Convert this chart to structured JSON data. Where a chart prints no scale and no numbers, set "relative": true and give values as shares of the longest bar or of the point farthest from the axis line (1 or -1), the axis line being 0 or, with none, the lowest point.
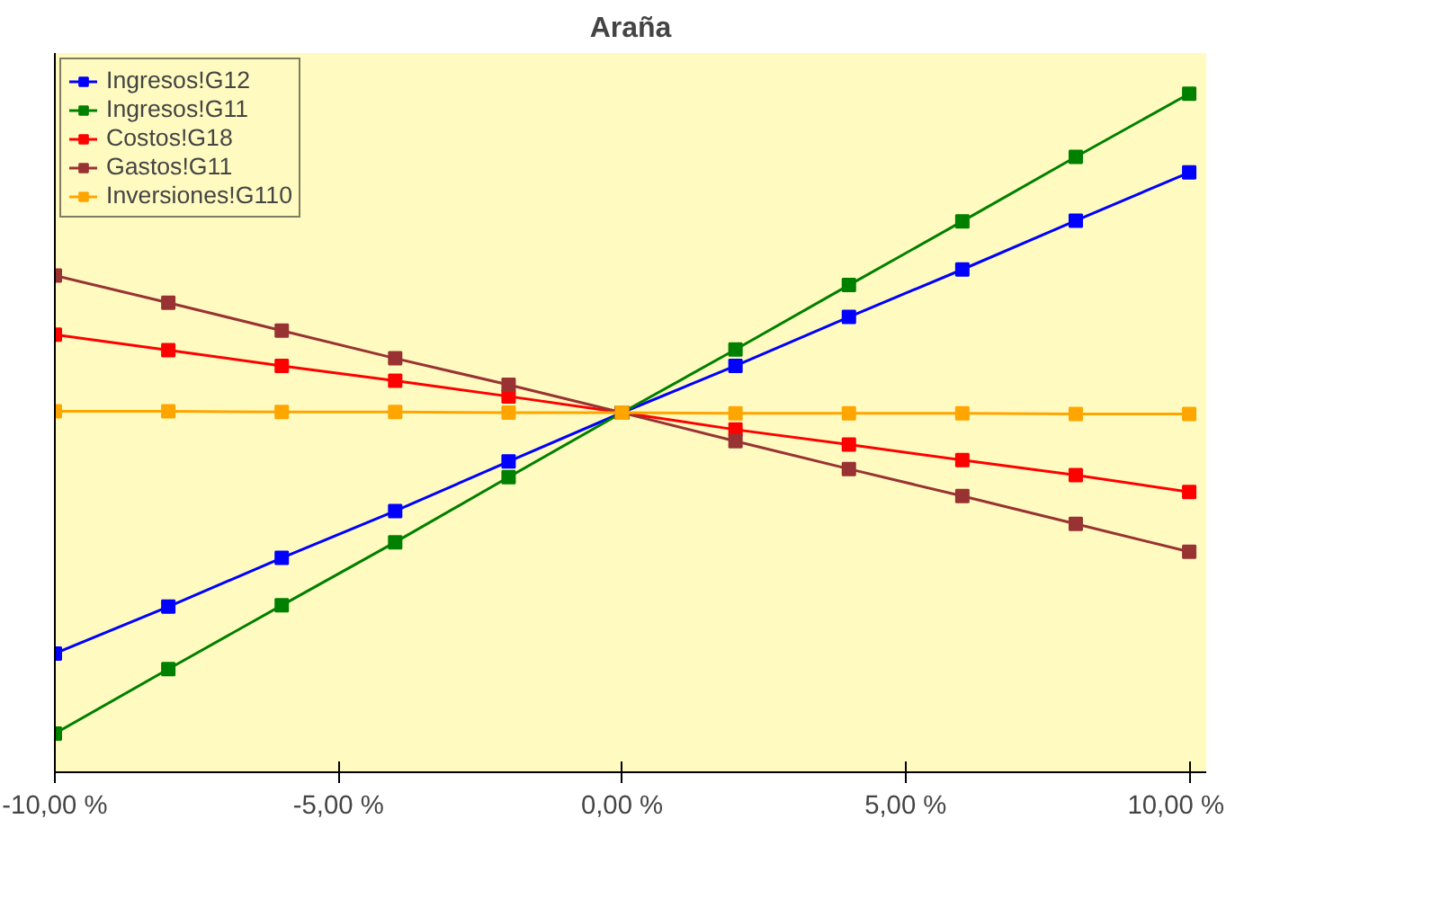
{
  "chart_data": {
    "type": "line",
    "title": "Araña",
    "relative": true,
    "x": [
      -10,
      -8,
      -6,
      -4,
      -2,
      0,
      2,
      4,
      6,
      8,
      10
    ],
    "series": [
      {
        "name": "Ingresos!G12",
        "color": "#0000ff",
        "values": [
          0.175,
          0.244,
          0.316,
          0.385,
          0.458,
          0.53,
          0.599,
          0.671,
          0.741,
          0.813,
          0.884
        ]
      },
      {
        "name": "Ingresos!G11",
        "color": "#008000",
        "values": [
          0.057,
          0.152,
          0.246,
          0.339,
          0.435,
          0.53,
          0.623,
          0.718,
          0.812,
          0.907,
          1
        ]
      },
      {
        "name": "Costos!G18",
        "color": "#ff0000",
        "values": [
          0.645,
          0.622,
          0.599,
          0.577,
          0.554,
          0.53,
          0.505,
          0.483,
          0.46,
          0.438,
          0.413
        ]
      },
      {
        "name": "Gastos!G11",
        "color": "#993333",
        "values": [
          0.732,
          0.692,
          0.651,
          0.61,
          0.571,
          0.53,
          0.488,
          0.447,
          0.407,
          0.366,
          0.325
        ]
      },
      {
        "name": "Inversiones!G110",
        "color": "#ffa500",
        "values": [
          0.532,
          0.532,
          0.531,
          0.531,
          0.53,
          0.53,
          0.529,
          0.529,
          0.529,
          0.528,
          0.528
        ]
      }
    ],
    "xlim": [
      -10,
      10.3
    ],
    "xticks": [
      {
        "value": -10,
        "label": "-10,00 %"
      },
      {
        "value": -5,
        "label": "-5,00 %"
      },
      {
        "value": 0,
        "label": "0,00 %"
      },
      {
        "value": 5,
        "label": "5,00 %"
      },
      {
        "value": 10,
        "label": "10,00 %"
      }
    ],
    "grid": false,
    "legend": "top left",
    "marker": "square",
    "line_style": "solid"
  }
}
